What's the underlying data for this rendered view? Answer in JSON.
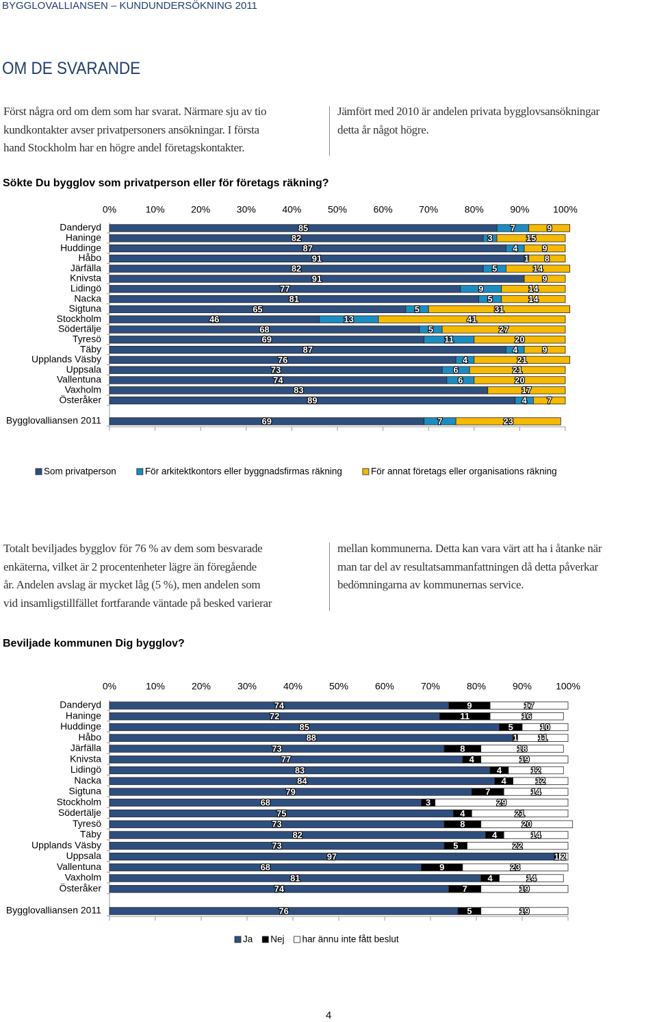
{
  "header": "BYGGLOVALLIANSEN – KUNDUNDERSÖKNING 2011",
  "heading": "OM DE SVARANDE",
  "intro": {
    "left": [
      "Först några ord om dem som har svarat. Närmare sju av tio",
      "kundkontakter avser privatpersoners ansökningar. I första",
      "hand Stockholm har en högre andel företagskontakter."
    ],
    "right": [
      "Jämfört med 2010 är andelen privata bygglovsansökningar",
      "detta år något högre."
    ]
  },
  "chart_data": [
    {
      "type": "bar",
      "orientation": "horizontal",
      "stacked": true,
      "title": "Sökte Du bygglov som privatperson eller för företags räkning?",
      "categories": [
        "Danderyd",
        "Haninge",
        "Huddinge",
        "Håbo",
        "Järfälla",
        "Knivsta",
        "Lidingö",
        "Nacka",
        "Sigtuna",
        "Stockholm",
        "Södertälje",
        "Tyresö",
        "Täby",
        "Upplands Väsby",
        "Uppsala",
        "Vallentuna",
        "Vaxholm",
        "Österåker",
        "Bygglovalliansen 2011"
      ],
      "series": [
        {
          "name": "Som privatperson",
          "color": "#2e4f7e",
          "values": [
            85,
            82,
            87,
            91,
            82,
            91,
            77,
            81,
            65,
            46,
            68,
            69,
            87,
            76,
            73,
            74,
            83,
            89,
            69
          ]
        },
        {
          "name": "För arkitektkontors eller byggnadsfirmas räkning",
          "color": "#1c8cc0",
          "values": [
            7,
            3,
            4,
            1,
            5,
            null,
            9,
            5,
            5,
            13,
            5,
            11,
            4,
            4,
            6,
            6,
            null,
            4,
            7
          ]
        },
        {
          "name": "För annat företags eller organisations räkning",
          "color": "#f5b900",
          "values": [
            9,
            15,
            9,
            8,
            14,
            9,
            14,
            14,
            31,
            41,
            27,
            20,
            9,
            21,
            21,
            20,
            17,
            7,
            23
          ]
        }
      ],
      "xlim": [
        0,
        100
      ],
      "xticks": [
        {
          "value": 0,
          "label": "0%"
        },
        {
          "value": 10,
          "label": "10%"
        },
        {
          "value": 20,
          "label": "20%"
        },
        {
          "value": 30,
          "label": "30%"
        },
        {
          "value": 40,
          "label": "40%"
        },
        {
          "value": 50,
          "label": "50%"
        },
        {
          "value": 60,
          "label": "60%"
        },
        {
          "value": 70,
          "label": "70%"
        },
        {
          "value": 80,
          "label": "80%"
        },
        {
          "value": 90,
          "label": "90%"
        },
        {
          "value": 100,
          "label": "100%"
        }
      ]
    },
    {
      "type": "bar",
      "orientation": "horizontal",
      "stacked": true,
      "title": "Beviljade kommunen Dig bygglov?",
      "categories": [
        "Danderyd",
        "Haninge",
        "Huddinge",
        "Håbo",
        "Järfälla",
        "Knivsta",
        "Lidingö",
        "Nacka",
        "Sigtuna",
        "Stockholm",
        "Södertälje",
        "Tyresö",
        "Täby",
        "Upplands Väsby",
        "Uppsala",
        "Vallentuna",
        "Vaxholm",
        "Österåker",
        "Bygglovalliansen 2011"
      ],
      "series": [
        {
          "name": "Ja",
          "color": "#2e4f7e",
          "values": [
            74,
            72,
            85,
            88,
            73,
            77,
            83,
            84,
            79,
            68,
            75,
            73,
            82,
            73,
            97,
            68,
            81,
            74,
            76
          ]
        },
        {
          "name": "Nej",
          "color": "#000000",
          "values": [
            9,
            11,
            5,
            1,
            8,
            4,
            4,
            4,
            7,
            3,
            4,
            8,
            4,
            5,
            1,
            9,
            4,
            7,
            5
          ]
        },
        {
          "name": "har ännu inte fått beslut",
          "color": "#ffffff",
          "values": [
            17,
            16,
            10,
            11,
            18,
            19,
            12,
            12,
            14,
            29,
            21,
            20,
            14,
            22,
            2,
            23,
            14,
            19,
            19
          ]
        }
      ],
      "xlim": [
        0,
        100
      ],
      "xticks": [
        {
          "value": 0,
          "label": "0%"
        },
        {
          "value": 10,
          "label": "10%"
        },
        {
          "value": 20,
          "label": "20%"
        },
        {
          "value": 30,
          "label": "30%"
        },
        {
          "value": 40,
          "label": "40%"
        },
        {
          "value": 50,
          "label": "50%"
        },
        {
          "value": 60,
          "label": "60%"
        },
        {
          "value": 70,
          "label": "70%"
        },
        {
          "value": 80,
          "label": "80%"
        },
        {
          "value": 90,
          "label": "90%"
        },
        {
          "value": 100,
          "label": "100%"
        }
      ]
    }
  ],
  "body": {
    "left": [
      "Totalt beviljades bygglov för 76 % av dem som besvarade",
      "enkäterna, vilket är 2 procentenheter lägre än föregående",
      "år. Andelen avslag är mycket låg (5 %), men andelen som",
      "vid insamligstillfället fortfarande väntade på besked varierar"
    ],
    "right": [
      "mellan kommunerna. Detta kan vara värt att ha i åtanke när",
      "man tar del av resultatsammanfattningen då detta påverkar",
      "bedömningarna av kommunernas service."
    ]
  },
  "page_number": "4"
}
